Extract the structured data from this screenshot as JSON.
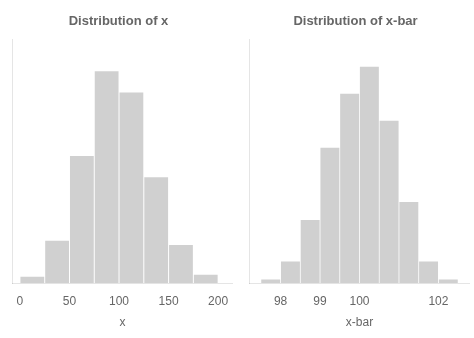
{
  "chart_data": [
    {
      "type": "histogram",
      "title": "Distribution of x",
      "xlabel": "x",
      "bins": [
        0,
        25,
        50,
        75,
        100,
        125,
        150,
        175,
        200
      ],
      "values": [
        0.3,
        2.0,
        6.0,
        10.0,
        9.0,
        5.0,
        1.8,
        0.4
      ],
      "color": "#d0d0d0",
      "xlim": [
        -8,
        215
      ],
      "xticks": [
        0,
        50,
        100,
        150,
        200
      ],
      "ylim": [
        0,
        11.5
      ],
      "grid": false,
      "tick_labels": "x"
    },
    {
      "type": "histogram",
      "title": "Distribution of x-bar",
      "xlabel": "x-bar",
      "bins": [
        97.5,
        98.0,
        98.5,
        99.0,
        99.5,
        100.0,
        100.5,
        101.0,
        101.5,
        102.0,
        102.5
      ],
      "values": [
        0.2,
        1.2,
        3.5,
        7.5,
        10.5,
        12.0,
        9.0,
        4.5,
        1.2,
        0.2
      ],
      "color": "#d0d0d0",
      "xlim": [
        97.2,
        102.8
      ],
      "xticks": [
        98,
        99,
        100,
        102
      ],
      "ylim": [
        0,
        13.5
      ],
      "grid": false,
      "tick_labels": "x"
    }
  ]
}
